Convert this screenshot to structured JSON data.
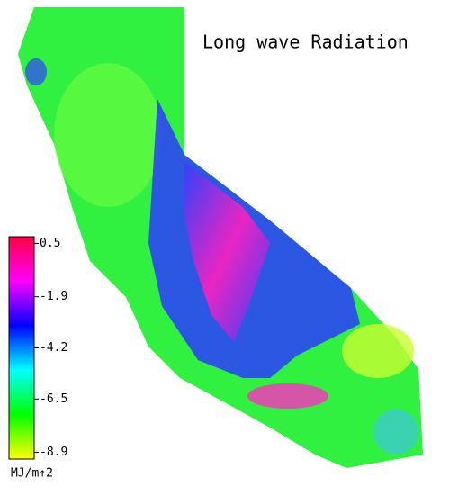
{
  "title": "Long wave Radiation",
  "colorbar": {
    "lim": [
      -9.2,
      0.8
    ],
    "ticks": [
      0.5,
      -1.9,
      -4.2,
      -6.5,
      -8.9
    ],
    "unit": "MJ/m↑2",
    "colors": [
      "#ffff00",
      "#00ff00",
      "#00ffff",
      "#0000ff",
      "#ff00ff",
      "#ff0040"
    ]
  }
}
